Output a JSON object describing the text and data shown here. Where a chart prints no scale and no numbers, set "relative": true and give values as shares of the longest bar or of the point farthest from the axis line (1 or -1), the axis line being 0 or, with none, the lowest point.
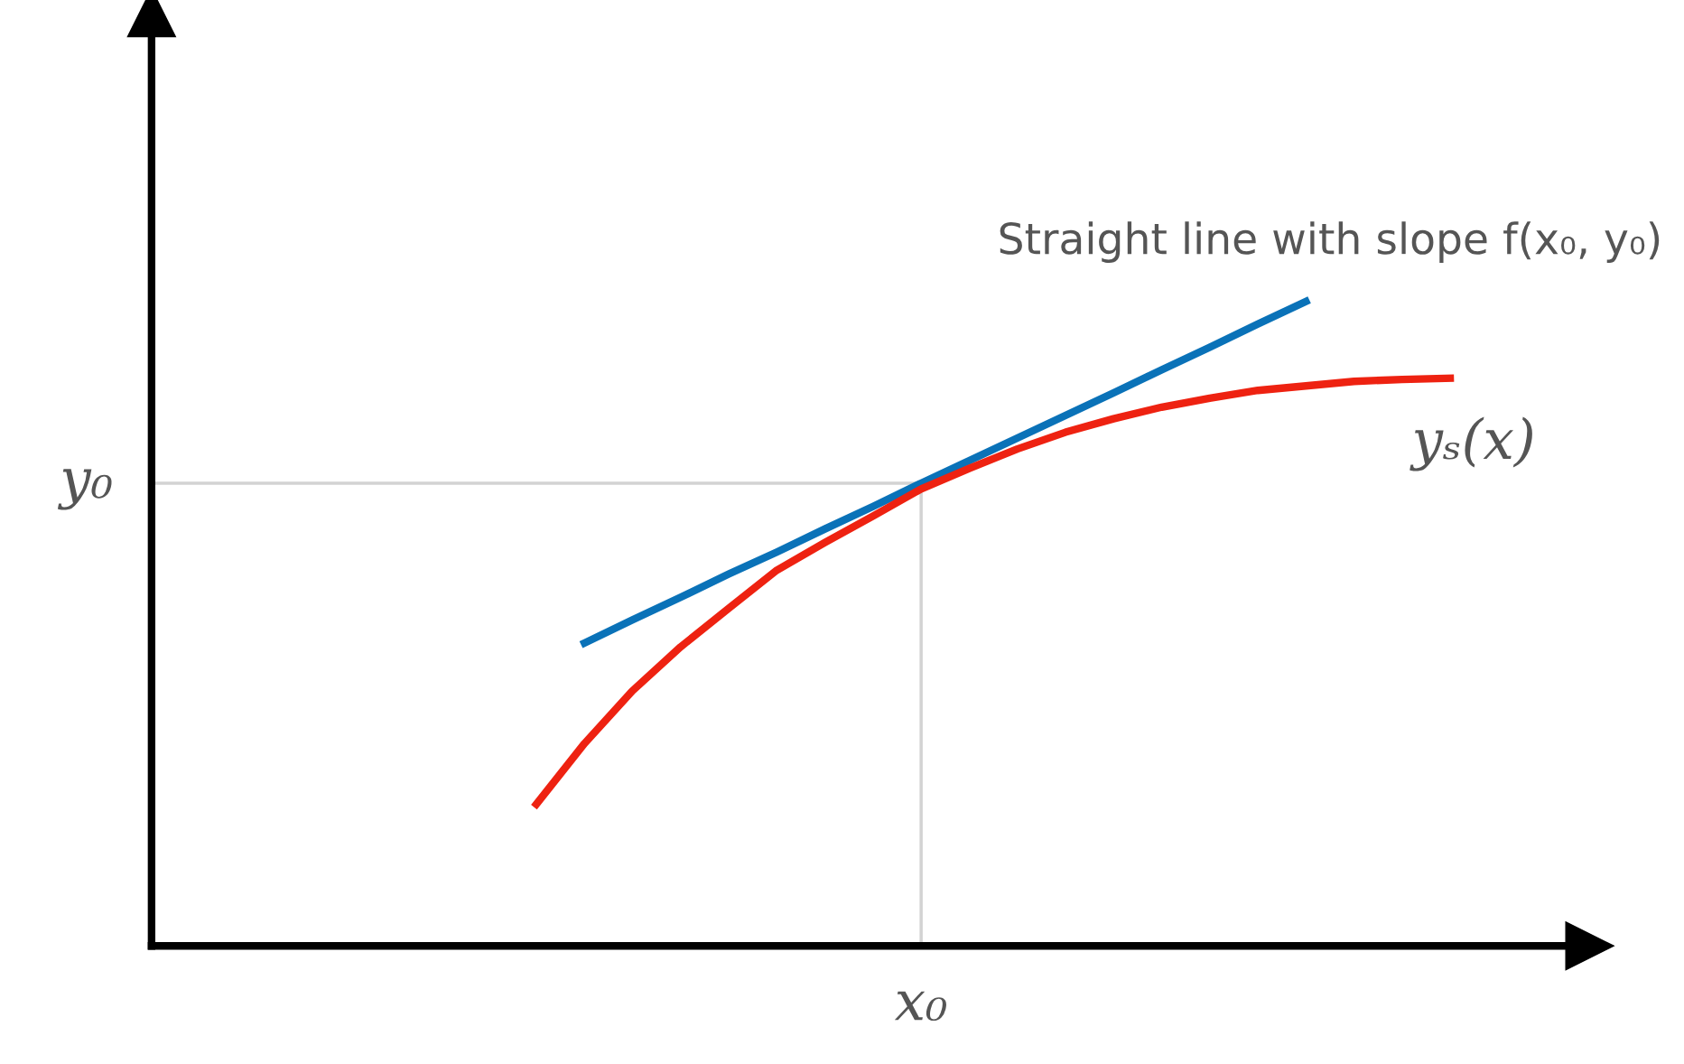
{
  "chart_data": {
    "type": "line",
    "relative": true,
    "marker": "none",
    "line_style": "solid",
    "categories": [
      null,
      null,
      null,
      null,
      null,
      null,
      null,
      null,
      null,
      null,
      null,
      null,
      null,
      null,
      null,
      null,
      null,
      null,
      null,
      null,
      null,
      null,
      null,
      null,
      null,
      null,
      null,
      null,
      null,
      null
    ],
    "series": [
      {
        "name": "Straight line with slope f(x₀, y₀)",
        "color": "#0a72b8",
        "values": [
          null,
          null,
          null,
          null,
          null,
          null,
          null,
          null,
          null,
          0.47,
          0.506,
          0.541,
          0.577,
          0.611,
          0.647,
          0.682,
          0.718,
          0.753,
          0.788,
          0.823,
          0.858,
          0.894,
          0.929,
          0.965,
          1.0,
          null,
          null,
          null,
          null,
          null
        ]
      },
      {
        "name": "yₛ(x)",
        "color": "#ee2211",
        "values": [
          null,
          null,
          null,
          null,
          null,
          null,
          null,
          null,
          0.22,
          0.314,
          0.396,
          0.464,
          0.524,
          0.583,
          0.626,
          0.667,
          0.709,
          0.741,
          0.771,
          0.797,
          0.818,
          0.836,
          0.85,
          0.862,
          0.869,
          0.876,
          0.879,
          0.881,
          null,
          null
        ]
      }
    ],
    "annotations": [
      "x₀"
    ],
    "ref_lines": [
      {
        "axis": "y",
        "value": 0.718,
        "label": "y₀",
        "color": "#d3d3d3"
      }
    ]
  }
}
